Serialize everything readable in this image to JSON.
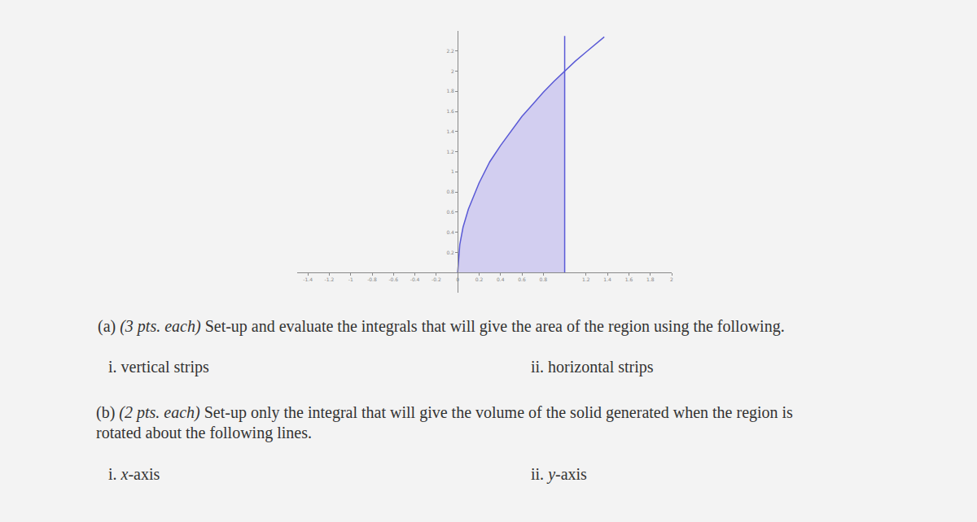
{
  "chart_data": {
    "type": "line",
    "xlim": [
      -1.5,
      2.0
    ],
    "ylim": [
      -0.2,
      2.4
    ],
    "xticks": [
      -1.4,
      -1.2,
      -1,
      -0.8,
      -0.6,
      -0.4,
      -0.2,
      0,
      0.2,
      0.4,
      0.6,
      0.8,
      1.2,
      1.4,
      1.6,
      1.8,
      2
    ],
    "yticks": [
      0.2,
      0.4,
      0.6,
      0.8,
      1,
      1.2,
      1.4,
      1.6,
      1.8,
      2,
      2.2
    ],
    "grid": false,
    "series": [
      {
        "type": "area",
        "color": "#d2cef0",
        "x": [
          0,
          0.02,
          0.05,
          0.1,
          0.2,
          0.3,
          0.4,
          0.5,
          0.6,
          0.7,
          0.8,
          0.9,
          1
        ],
        "values": [
          0,
          0.28,
          0.45,
          0.63,
          0.89,
          1.1,
          1.26,
          1.41,
          1.55,
          1.67,
          1.79,
          1.9,
          2
        ]
      },
      {
        "type": "line",
        "color": "#5a5ad6",
        "x": [
          0,
          0.02,
          0.05,
          0.1,
          0.2,
          0.3,
          0.4,
          0.5,
          0.6,
          0.7,
          0.8,
          0.9,
          1,
          1.1,
          1.2,
          1.3,
          1.37
        ],
        "values": [
          0,
          0.28,
          0.45,
          0.63,
          0.89,
          1.1,
          1.26,
          1.41,
          1.55,
          1.67,
          1.79,
          1.9,
          2,
          2.1,
          2.19,
          2.28,
          2.34
        ]
      },
      {
        "type": "line",
        "color": "#5a5ad6",
        "x": [
          1,
          1
        ],
        "values": [
          0,
          2.35
        ]
      }
    ]
  },
  "document": {
    "blocks": [
      {
        "kind": "para",
        "lines": [
          [
            {
              "text": "(a) "
            },
            {
              "text": "(3 pts. each)",
              "italic": true
            },
            {
              "text": " Set-up and evaluate the integrals that will give the area of the region using the following."
            }
          ]
        ]
      },
      {
        "kind": "options",
        "items": [
          [
            {
              "text": "i. vertical strips"
            }
          ],
          [
            {
              "text": "ii. horizontal strips"
            }
          ]
        ]
      },
      {
        "kind": "para",
        "lines": [
          [
            {
              "text": "(b) "
            },
            {
              "text": "(2 pts. each)",
              "italic": true
            },
            {
              "text": " Set-up only the integral that will give the volume of the solid generated when the region is"
            }
          ],
          [
            {
              "text": "rotated about the following lines."
            }
          ]
        ]
      },
      {
        "kind": "options",
        "items": [
          [
            {
              "text": "i. "
            },
            {
              "text": "x",
              "italic": true
            },
            {
              "text": "-axis"
            }
          ],
          [
            {
              "text": "ii. "
            },
            {
              "text": "y",
              "italic": true
            },
            {
              "text": "-axis"
            }
          ]
        ]
      }
    ]
  }
}
